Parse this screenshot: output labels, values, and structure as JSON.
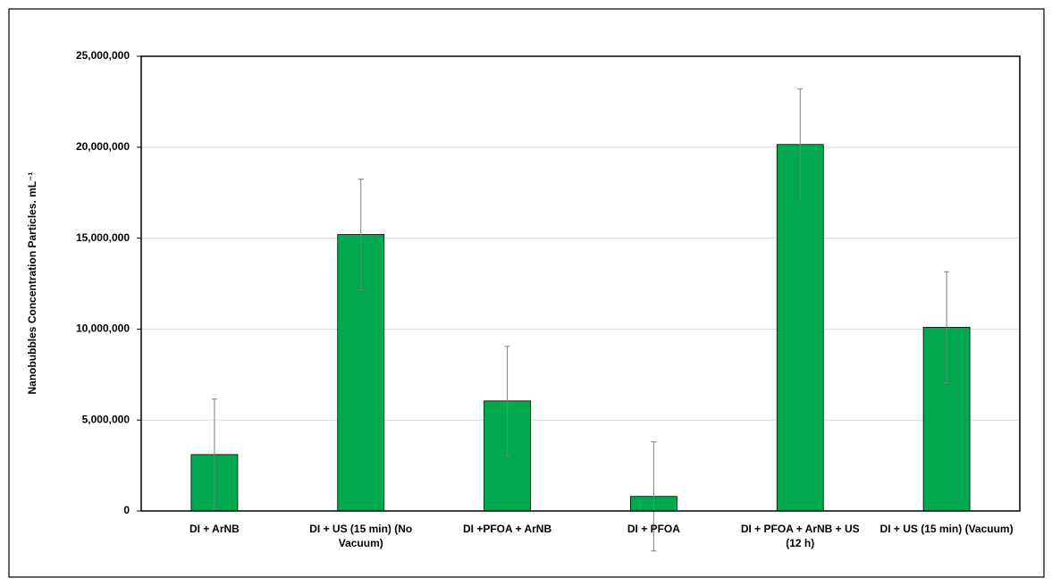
{
  "chart_data": {
    "type": "bar",
    "y_label": "Nanobubbles Concentration Particles. mL⁻¹",
    "categories": [
      "DI + ArNB",
      "DI + US (15 min) (No Vacuum)",
      "DI +PFOA + ArNB",
      "DI + PFOA",
      "DI + PFOA + ArNB + US (12 h)",
      "DI + US (15 min) (Vacuum)"
    ],
    "values": [
      3100000,
      15200000,
      6050000,
      800000,
      20150000,
      10100000
    ],
    "errors": [
      3050000,
      3050000,
      3000000,
      3000000,
      3050000,
      3050000
    ],
    "color": "#00a84f",
    "ylim": [
      0,
      25000000
    ],
    "yticks": [
      {
        "value": 0,
        "label": "0"
      },
      {
        "value": 5000000,
        "label": "5,000,000"
      },
      {
        "value": 10000000,
        "label": "10,000,000"
      },
      {
        "value": 15000000,
        "label": "15,000,000"
      },
      {
        "value": 20000000,
        "label": "20,000,000"
      },
      {
        "value": 25000000,
        "label": "25,000,000"
      }
    ],
    "grid": true
  }
}
